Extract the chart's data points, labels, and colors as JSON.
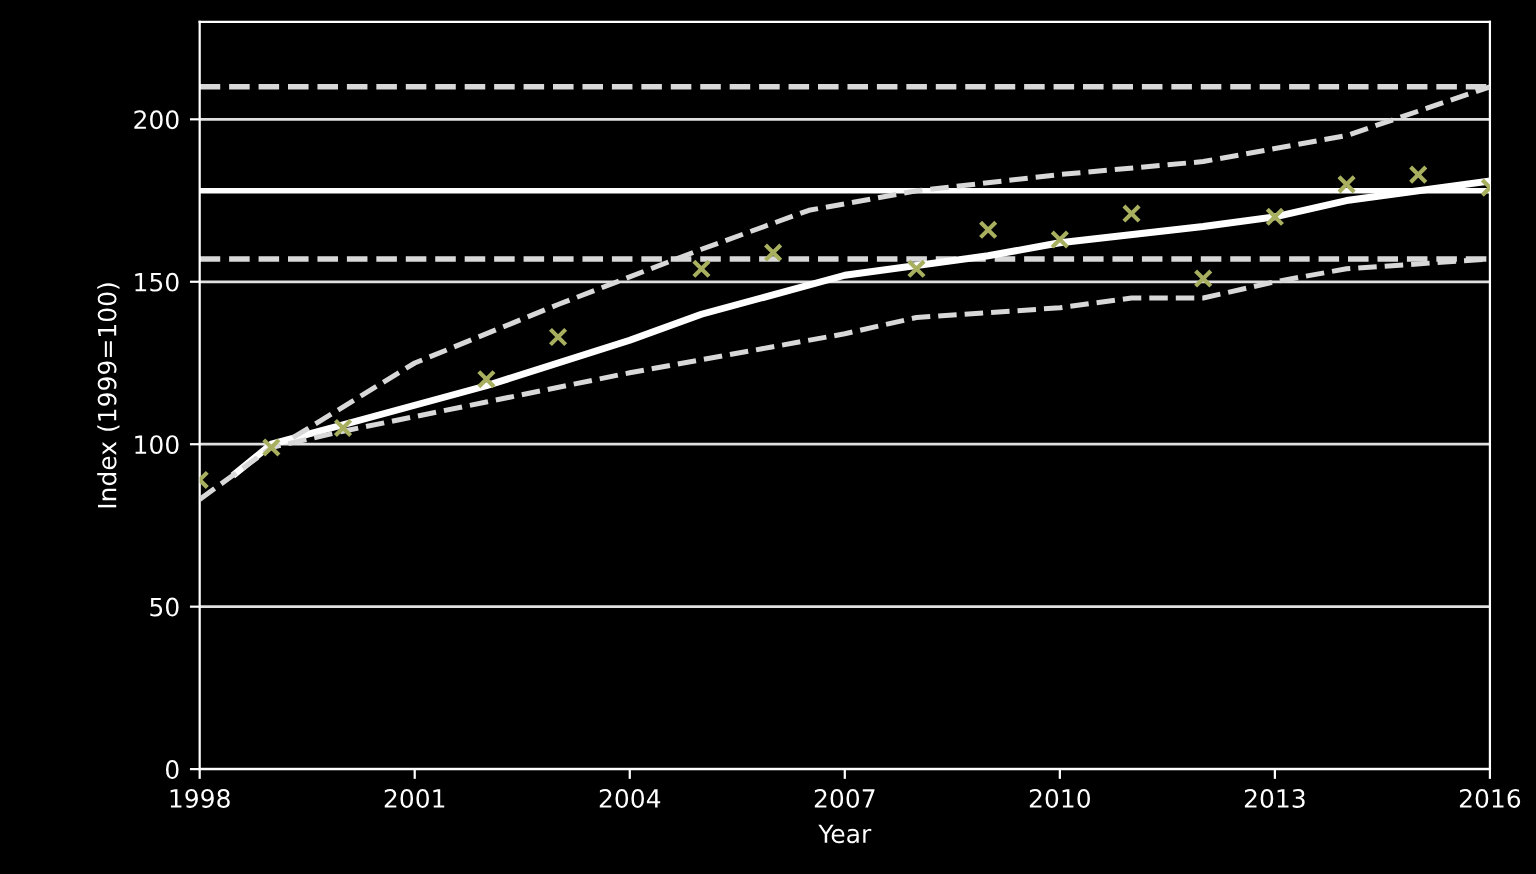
{
  "chart_data": {
    "type": "line",
    "xlabel": "Year",
    "ylabel": "Index (1999=100)",
    "xlim": [
      1998,
      2016
    ],
    "xticks": [
      1998,
      2001,
      2004,
      2007,
      2010,
      2013,
      2016
    ],
    "ylim": [
      0,
      230
    ],
    "yticks": [
      0,
      50,
      100,
      150,
      200
    ],
    "grid": "y",
    "series": [
      {
        "type": "scatter",
        "marker": "cross",
        "color": "#a8b060",
        "x": [
          1998,
          1999,
          2000,
          2002,
          2003,
          2005,
          2006,
          2008,
          2009,
          2010,
          2011,
          2012,
          2013,
          2014,
          2015,
          2016
        ],
        "values": [
          89,
          99,
          105,
          120,
          133,
          154,
          159,
          154,
          166,
          163,
          171,
          151,
          170,
          180,
          183,
          179
        ]
      },
      {
        "line_style": "solid",
        "color": "#ffffff",
        "x": [
          1998.5,
          1999,
          2000,
          2002,
          2004,
          2005,
          2007,
          2009,
          2010,
          2012,
          2013,
          2014,
          2015,
          2016
        ],
        "values": [
          91,
          100,
          106,
          118,
          132,
          140,
          152,
          158,
          162,
          167,
          170,
          175,
          178,
          181
        ]
      },
      {
        "line_style": "dashed",
        "color": "#d8d8d8",
        "x": [
          1999.3,
          2001,
          2003,
          2005,
          2006.5,
          2008,
          2010,
          2012,
          2014,
          2016
        ],
        "values": [
          102,
          125,
          143,
          160,
          172,
          178,
          183,
          187,
          195,
          210
        ]
      },
      {
        "line_style": "dashed",
        "color": "#d8d8d8",
        "x": [
          1998,
          1999,
          2000,
          2002,
          2004,
          2006,
          2007,
          2008,
          2010,
          2011,
          2012,
          2013,
          2014,
          2016
        ],
        "values": [
          83,
          99,
          104,
          113,
          122,
          130,
          134,
          139,
          142,
          145,
          145,
          150,
          154,
          157
        ]
      }
    ],
    "ref_lines": [
      {
        "axis": "y",
        "value": 210,
        "line_style": "dashed",
        "color": "#d8d8d8"
      },
      {
        "axis": "y",
        "value": 178,
        "line_style": "solid",
        "color": "#ffffff"
      },
      {
        "axis": "y",
        "value": 157,
        "line_style": "dashed",
        "color": "#d8d8d8"
      }
    ]
  }
}
